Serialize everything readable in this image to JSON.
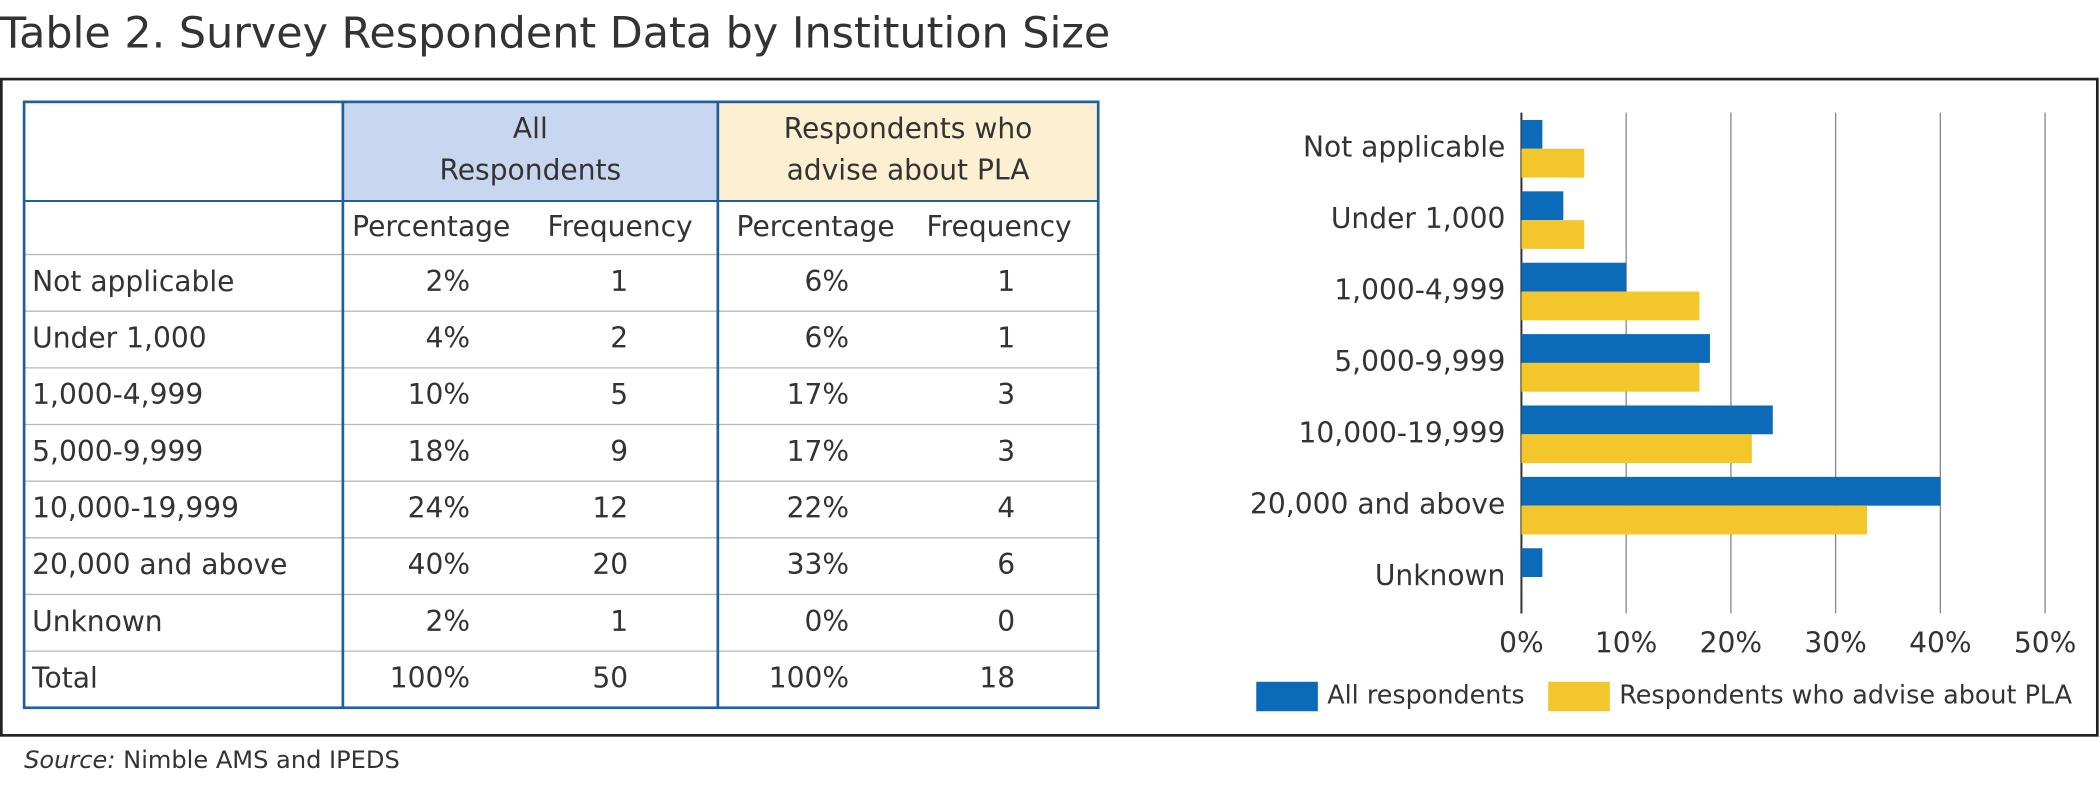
{
  "title": "Table 2. Survey Respondent Data by Institution Size",
  "table": {
    "groups": [
      {
        "lines": [
          "All",
          "Respondents"
        ]
      },
      {
        "lines": [
          "Respondents who",
          "advise about PLA"
        ]
      }
    ],
    "subheaders": [
      "Percentage",
      "Frequency",
      "Percentage",
      "Frequency"
    ],
    "rows": [
      [
        "Not applicable",
        "2%",
        "1",
        "6%",
        "1"
      ],
      [
        "Under 1,000",
        "4%",
        "2",
        "6%",
        "1"
      ],
      [
        "1,000-4,999",
        "10%",
        "5",
        "17%",
        "3"
      ],
      [
        "5,000-9,999",
        "18%",
        "9",
        "17%",
        "3"
      ],
      [
        "10,000-19,999",
        "24%",
        "12",
        "22%",
        "4"
      ],
      [
        "20,000 and above",
        "40%",
        "20",
        "33%",
        "6"
      ],
      [
        "Unknown",
        "2%",
        "1",
        "0%",
        "0"
      ],
      [
        "Total",
        "100%",
        "50",
        "100%",
        "18"
      ]
    ]
  },
  "chart_data": {
    "type": "hbar",
    "categories": [
      "Not applicable",
      "Under 1,000",
      "1,000-4,999",
      "5,000-9,999",
      "10,000-19,999",
      "20,000 and above",
      "Unknown"
    ],
    "series": [
      {
        "name": "All respondents",
        "color": "#0b6bb8",
        "values": [
          2,
          4,
          10,
          18,
          24,
          40,
          2
        ]
      },
      {
        "name": "Respondents who advise about PLA",
        "color": "#f3c72b",
        "values": [
          6,
          6,
          17,
          17,
          22,
          33,
          0
        ]
      }
    ],
    "xlim": [
      0,
      50
    ],
    "xticks": [
      {
        "value": 0,
        "label": "0%"
      },
      {
        "value": 10,
        "label": "10%"
      },
      {
        "value": 20,
        "label": "20%"
      },
      {
        "value": 30,
        "label": "30%"
      },
      {
        "value": 40,
        "label": "40%"
      },
      {
        "value": 50,
        "label": "50%"
      }
    ],
    "grid": true
  },
  "source": {
    "label": "Source:",
    "text": "Nimble AMS and IPEDS"
  }
}
